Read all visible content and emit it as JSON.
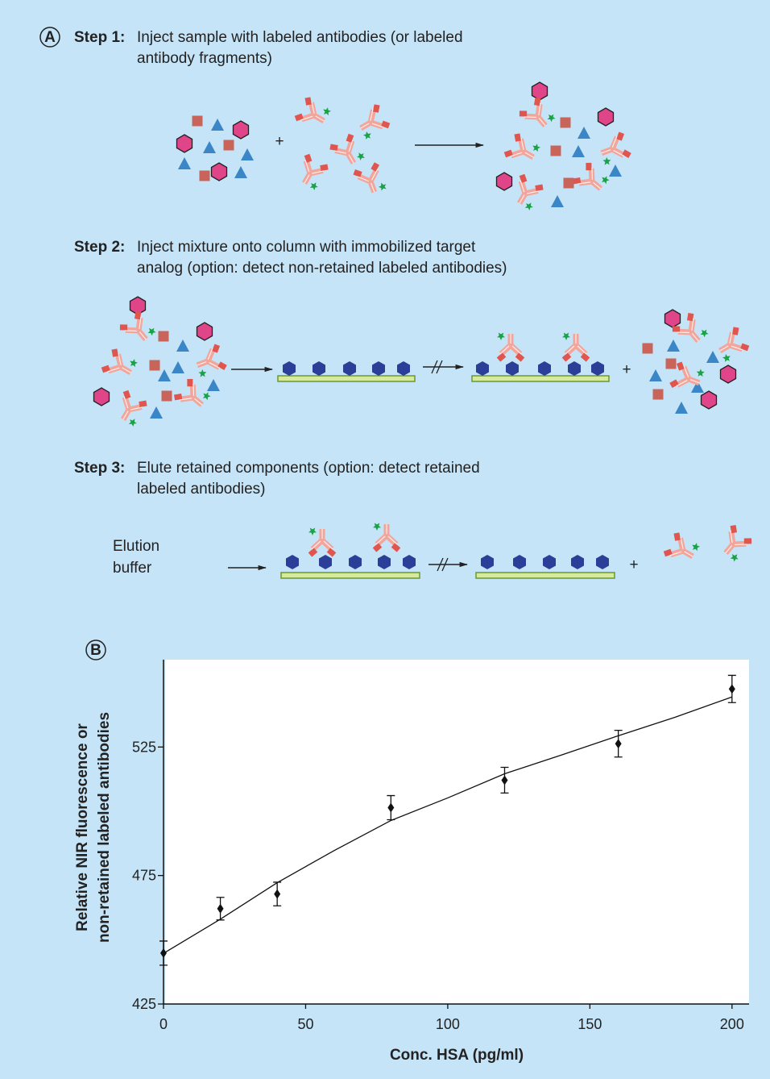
{
  "panel_a": {
    "label": "A",
    "step1": {
      "label": "Step 1:",
      "lines": [
        "Inject sample with labeled antibodies (or labeled",
        "antibody fragments)"
      ],
      "plus": "+"
    },
    "step2": {
      "label": "Step 2:",
      "lines": [
        "Inject mixture onto column with immobilized target",
        "analog (option: detect non-retained labeled antibodies)"
      ],
      "plus": "+"
    },
    "step3": {
      "label": "Step 3:",
      "lines": [
        "Elute retained components (option: detect retained",
        "labeled antibodies)"
      ],
      "buffer": [
        "Elution",
        "buffer"
      ],
      "plus": "+"
    }
  },
  "chart_data": {
    "type": "scatter",
    "panel_label": "B",
    "xlabel": "Conc. HSA (pg/ml)",
    "ylabel": [
      "Relative NIR fluorescence or",
      "non-retained labeled antibodies"
    ],
    "x": [
      0,
      20,
      40,
      80,
      120,
      160,
      200
    ],
    "values": [
      444.8,
      462.1,
      467.8,
      501.4,
      512.1,
      526.3,
      547.6
    ],
    "errors": [
      4.7,
      4.4,
      4.6,
      4.7,
      5.0,
      5.2,
      5.3
    ],
    "fit": {
      "x": [
        0,
        20,
        40,
        60,
        80,
        100,
        120,
        140,
        160,
        180,
        200
      ],
      "values": [
        444.7,
        458.0,
        472.2,
        484.7,
        496.4,
        505.2,
        514.6,
        521.9,
        529.4,
        536.6,
        544.5
      ]
    },
    "color": "#111111",
    "xlim": [
      0,
      206
    ],
    "ylim": [
      425,
      559
    ],
    "xticks": [
      0,
      50,
      100,
      150,
      200
    ],
    "yticks": [
      425,
      475,
      525
    ]
  }
}
